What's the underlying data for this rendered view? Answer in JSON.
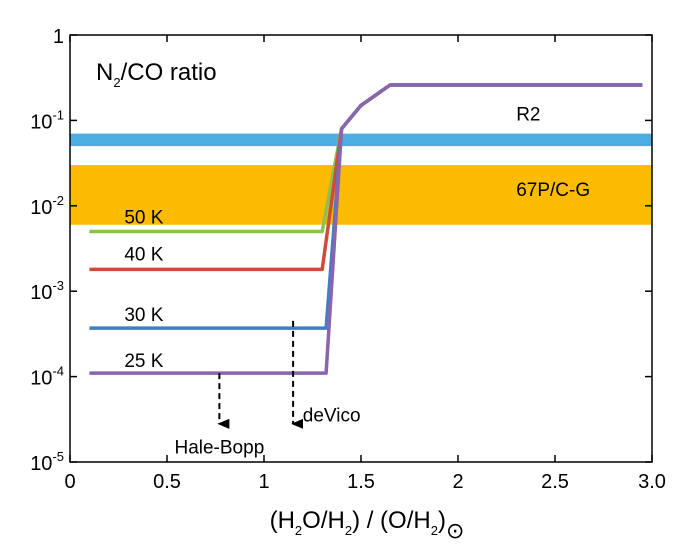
{
  "chart_data": {
    "type": "line",
    "title": "N₂/CO ratio",
    "title_parts": {
      "main": "N",
      "sub": "2",
      "rest": "/CO ratio"
    },
    "xlabel": "(H₂O/H₂) / (O/H₂)⊙",
    "xlabel_parts": [
      "(H",
      "2",
      "O/H",
      "2",
      ") / (O/H",
      "2",
      ")",
      "⊙"
    ],
    "ylabel": "",
    "xlim": [
      0,
      3
    ],
    "ylim": [
      1e-05,
      1
    ],
    "yscale": "log",
    "x_ticks": [
      {
        "value": 0,
        "label": "0"
      },
      {
        "value": 0.5,
        "label": "0.5"
      },
      {
        "value": 1,
        "label": "1"
      },
      {
        "value": 1.5,
        "label": "1.5"
      },
      {
        "value": 2,
        "label": "2"
      },
      {
        "value": 2.5,
        "label": "2.5"
      },
      {
        "value": 3,
        "label": "3.0"
      }
    ],
    "y_ticks": [
      {
        "value": 1,
        "base": "1",
        "exp": ""
      },
      {
        "value": 0.1,
        "base": "10",
        "exp": "-1"
      },
      {
        "value": 0.01,
        "base": "10",
        "exp": "-2"
      },
      {
        "value": 0.001,
        "base": "10",
        "exp": "-3"
      },
      {
        "value": 0.0001,
        "base": "10",
        "exp": "-4"
      },
      {
        "value": 1e-05,
        "base": "10",
        "exp": "-5"
      }
    ],
    "grid": false,
    "bands": [
      {
        "name": "R2",
        "y_low": 0.05,
        "y_high": 0.07,
        "color": "#4aaee3",
        "label_x": 2.3,
        "label_y": 0.1
      },
      {
        "name": "67P/C-G",
        "y_low": 0.006,
        "y_high": 0.03,
        "color": "#fbbb00",
        "label_x": 2.3,
        "label_y": 0.013
      }
    ],
    "series": [
      {
        "name": "50 K",
        "color": "#8fbf4f",
        "label_x": 0.28,
        "label_y": 0.0062,
        "x": [
          0.1,
          1.3,
          1.4,
          1.5,
          1.65,
          2.95
        ],
        "y": [
          0.005,
          0.005,
          0.08,
          0.15,
          0.26,
          0.26
        ]
      },
      {
        "name": "40 K",
        "color": "#cc4d3a",
        "label_x": 0.28,
        "label_y": 0.0023,
        "x": [
          0.1,
          1.3,
          1.4,
          1.5,
          1.65,
          2.95
        ],
        "y": [
          0.0018,
          0.0018,
          0.08,
          0.15,
          0.26,
          0.26
        ]
      },
      {
        "name": "30 K",
        "color": "#3f7fc4",
        "label_x": 0.28,
        "label_y": 0.00045,
        "x": [
          0.1,
          1.32,
          1.4,
          1.5,
          1.65,
          2.95
        ],
        "y": [
          0.00037,
          0.00037,
          0.08,
          0.15,
          0.26,
          0.26
        ]
      },
      {
        "name": "25 K",
        "color": "#8a64ad",
        "label_x": 0.28,
        "label_y": 0.00013,
        "x": [
          0.1,
          1.32,
          1.4,
          1.5,
          1.65,
          2.95
        ],
        "y": [
          0.00011,
          0.00011,
          0.08,
          0.15,
          0.26,
          0.26
        ]
      }
    ],
    "annotations": [
      {
        "text": "Hale-Bopp",
        "x": 0.77,
        "arrow_y_top": 0.00011,
        "arrow_y_bottom": 2.8e-05,
        "label_x": 0.77,
        "label_y": 1.25e-05,
        "anchor": "middle"
      },
      {
        "text": "deVico",
        "x": 1.15,
        "arrow_y_top": 0.00045,
        "arrow_y_bottom": 2.8e-05,
        "label_x": 1.2,
        "label_y": 3e-05,
        "anchor": "start"
      }
    ]
  }
}
